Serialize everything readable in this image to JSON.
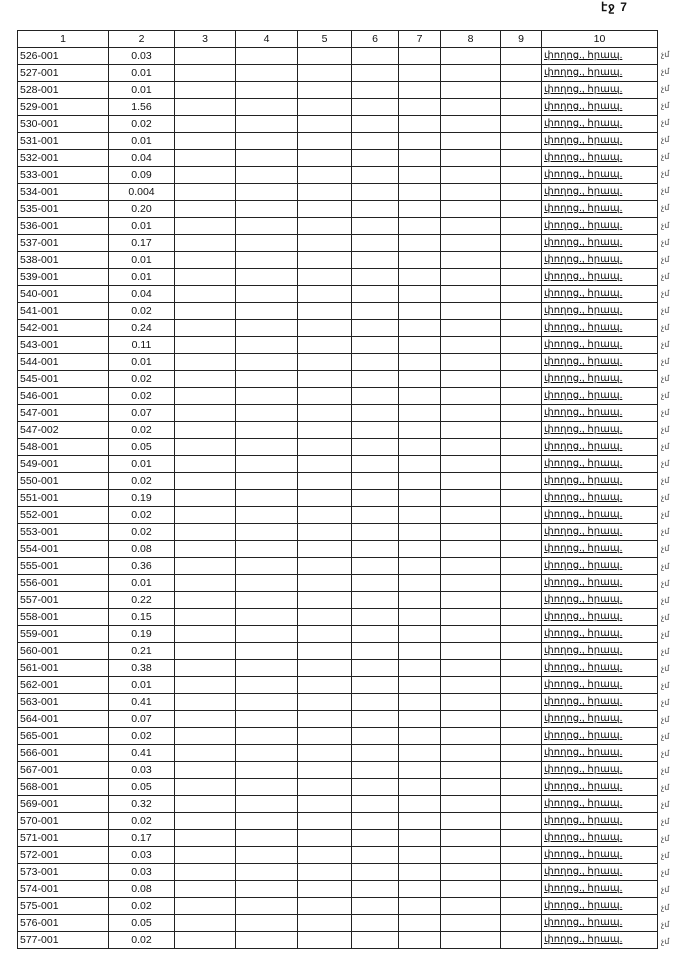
{
  "page_label": "էջ 7",
  "columns": [
    "1",
    "2",
    "3",
    "4",
    "5",
    "6",
    "7",
    "8",
    "9",
    "10"
  ],
  "note_text": "փողոց., հրապ.",
  "side_mark": "չմ",
  "rows": [
    [
      "526-001",
      "0.03"
    ],
    [
      "527-001",
      "0.01"
    ],
    [
      "528-001",
      "0.01"
    ],
    [
      "529-001",
      "1.56"
    ],
    [
      "530-001",
      "0.02"
    ],
    [
      "531-001",
      "0.01"
    ],
    [
      "532-001",
      "0.04"
    ],
    [
      "533-001",
      "0.09"
    ],
    [
      "534-001",
      "0.004"
    ],
    [
      "535-001",
      "0.20"
    ],
    [
      "536-001",
      "0.01"
    ],
    [
      "537-001",
      "0.17"
    ],
    [
      "538-001",
      "0.01"
    ],
    [
      "539-001",
      "0.01"
    ],
    [
      "540-001",
      "0.04"
    ],
    [
      "541-001",
      "0.02"
    ],
    [
      "542-001",
      "0.24"
    ],
    [
      "543-001",
      "0.11"
    ],
    [
      "544-001",
      "0.01"
    ],
    [
      "545-001",
      "0.02"
    ],
    [
      "546-001",
      "0.02"
    ],
    [
      "547-001",
      "0.07"
    ],
    [
      "547-002",
      "0.02"
    ],
    [
      "548-001",
      "0.05"
    ],
    [
      "549-001",
      "0.01"
    ],
    [
      "550-001",
      "0.02"
    ],
    [
      "551-001",
      "0.19"
    ],
    [
      "552-001",
      "0.02"
    ],
    [
      "553-001",
      "0.02"
    ],
    [
      "554-001",
      "0.08"
    ],
    [
      "555-001",
      "0.36"
    ],
    [
      "556-001",
      "0.01"
    ],
    [
      "557-001",
      "0.22"
    ],
    [
      "558-001",
      "0.15"
    ],
    [
      "559-001",
      "0.19"
    ],
    [
      "560-001",
      "0.21"
    ],
    [
      "561-001",
      "0.38"
    ],
    [
      "562-001",
      "0.01"
    ],
    [
      "563-001",
      "0.41"
    ],
    [
      "564-001",
      "0.07"
    ],
    [
      "565-001",
      "0.02"
    ],
    [
      "566-001",
      "0.41"
    ],
    [
      "567-001",
      "0.03"
    ],
    [
      "568-001",
      "0.05"
    ],
    [
      "569-001",
      "0.32"
    ],
    [
      "570-001",
      "0.02"
    ],
    [
      "571-001",
      "0.17"
    ],
    [
      "572-001",
      "0.03"
    ],
    [
      "573-001",
      "0.03"
    ],
    [
      "574-001",
      "0.08"
    ],
    [
      "575-001",
      "0.02"
    ],
    [
      "576-001",
      "0.05"
    ],
    [
      "577-001",
      "0.02"
    ]
  ]
}
